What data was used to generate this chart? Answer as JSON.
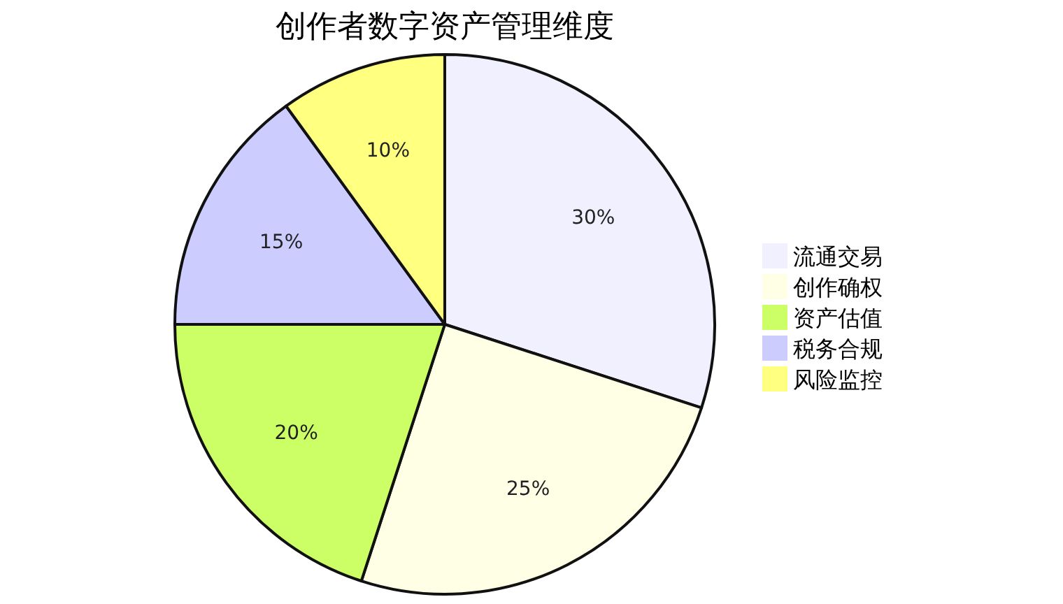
{
  "chart_data": {
    "type": "pie",
    "title": "创作者数字资产管理维度",
    "categories": [
      "流通交易",
      "创作确权",
      "资产估值",
      "税务合规",
      "风险监控"
    ],
    "values": [
      30,
      25,
      20,
      15,
      10
    ],
    "colors": [
      "#f0f0ff",
      "#ffffe6",
      "#ccff66",
      "#ccccff",
      "#ffff80"
    ],
    "value_labels": [
      "30%",
      "25%",
      "20%",
      "15%",
      "10%"
    ],
    "legend": "right"
  }
}
